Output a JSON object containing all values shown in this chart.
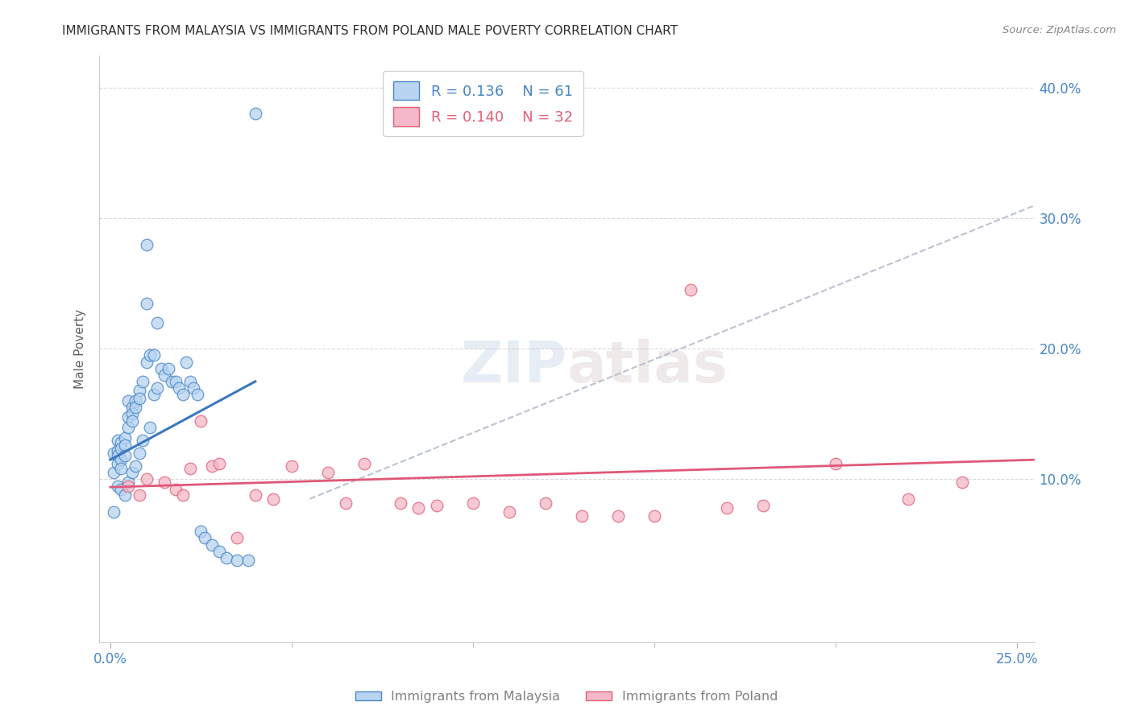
{
  "title": "IMMIGRANTS FROM MALAYSIA VS IMMIGRANTS FROM POLAND MALE POVERTY CORRELATION CHART",
  "source": "Source: ZipAtlas.com",
  "ylabel": "Male Poverty",
  "watermark": "ZIPatlas",
  "xlim": [
    -0.003,
    0.255
  ],
  "ylim": [
    -0.025,
    0.425
  ],
  "y_ticks": [
    0.1,
    0.2,
    0.3,
    0.4
  ],
  "y_tick_labels": [
    "10.0%",
    "20.0%",
    "30.0%",
    "40.0%"
  ],
  "x_ticks_minor": [
    0.05,
    0.1,
    0.15,
    0.2
  ],
  "malaysia_color": "#b8d4f0",
  "malaysia_edge_color": "#4a86c8",
  "poland_color": "#f5b8c8",
  "poland_edge_color": "#e0607a",
  "malaysia_R": 0.136,
  "malaysia_N": 61,
  "poland_R": 0.14,
  "poland_N": 32,
  "malaysia_line_color": "#3a78c0",
  "poland_line_color": "#e05878",
  "dash_line_color": "#b0b8c8",
  "malaysia_x": [
    0.001,
    0.001,
    0.001,
    0.002,
    0.002,
    0.002,
    0.002,
    0.002,
    0.003,
    0.003,
    0.003,
    0.003,
    0.003,
    0.004,
    0.004,
    0.004,
    0.004,
    0.005,
    0.005,
    0.005,
    0.005,
    0.006,
    0.006,
    0.006,
    0.006,
    0.007,
    0.007,
    0.007,
    0.008,
    0.008,
    0.008,
    0.009,
    0.009,
    0.01,
    0.01,
    0.01,
    0.011,
    0.011,
    0.012,
    0.012,
    0.013,
    0.013,
    0.014,
    0.015,
    0.016,
    0.017,
    0.018,
    0.019,
    0.02,
    0.021,
    0.022,
    0.023,
    0.024,
    0.025,
    0.026,
    0.028,
    0.03,
    0.032,
    0.035,
    0.038,
    0.04
  ],
  "malaysia_y": [
    0.12,
    0.105,
    0.075,
    0.13,
    0.122,
    0.118,
    0.112,
    0.095,
    0.128,
    0.124,
    0.115,
    0.108,
    0.092,
    0.132,
    0.126,
    0.118,
    0.088,
    0.16,
    0.148,
    0.14,
    0.098,
    0.155,
    0.15,
    0.145,
    0.105,
    0.16,
    0.155,
    0.11,
    0.168,
    0.162,
    0.12,
    0.175,
    0.13,
    0.28,
    0.235,
    0.19,
    0.195,
    0.14,
    0.195,
    0.165,
    0.22,
    0.17,
    0.185,
    0.18,
    0.185,
    0.175,
    0.175,
    0.17,
    0.165,
    0.19,
    0.175,
    0.17,
    0.165,
    0.06,
    0.055,
    0.05,
    0.045,
    0.04,
    0.038,
    0.038,
    0.38
  ],
  "malaysia_line_x": [
    0.0,
    0.04
  ],
  "malaysia_line_y": [
    0.115,
    0.175
  ],
  "poland_x": [
    0.005,
    0.008,
    0.01,
    0.015,
    0.018,
    0.02,
    0.022,
    0.025,
    0.028,
    0.03,
    0.035,
    0.04,
    0.045,
    0.05,
    0.06,
    0.065,
    0.07,
    0.08,
    0.085,
    0.09,
    0.1,
    0.11,
    0.12,
    0.13,
    0.14,
    0.15,
    0.16,
    0.17,
    0.18,
    0.2,
    0.22,
    0.235
  ],
  "poland_y": [
    0.095,
    0.088,
    0.1,
    0.098,
    0.092,
    0.088,
    0.108,
    0.145,
    0.11,
    0.112,
    0.055,
    0.088,
    0.085,
    0.11,
    0.105,
    0.082,
    0.112,
    0.082,
    0.078,
    0.08,
    0.082,
    0.075,
    0.082,
    0.072,
    0.072,
    0.072,
    0.245,
    0.078,
    0.08,
    0.112,
    0.085,
    0.098
  ],
  "poland_line_x": [
    0.0,
    0.255
  ],
  "poland_line_y": [
    0.094,
    0.115
  ],
  "dash_line_x": [
    0.055,
    0.255
  ],
  "dash_line_y": [
    0.085,
    0.31
  ],
  "grid_color": "#d0d0d0",
  "background_color": "#ffffff",
  "title_color": "#303030",
  "tick_label_color": "#4a86c8",
  "ylabel_color": "#606060"
}
